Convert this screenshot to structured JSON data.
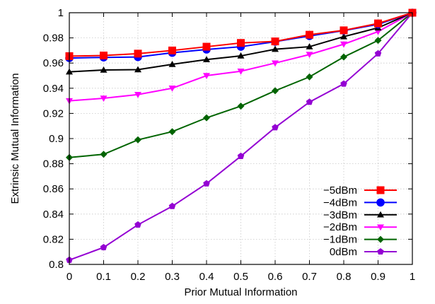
{
  "chart_data": {
    "type": "line",
    "title": "",
    "xlabel": "Prior Mutual Information",
    "ylabel": "Extrinsic Mutual Information",
    "xlim": [
      0,
      1
    ],
    "ylim": [
      0.8,
      1
    ],
    "x_ticks": [
      "0",
      "0.1",
      "0.2",
      "0.3",
      "0.4",
      "0.5",
      "0.6",
      "0.7",
      "0.8",
      "0.9",
      "1"
    ],
    "y_ticks": [
      "0.8",
      "0.82",
      "0.84",
      "0.86",
      "0.88",
      "0.9",
      "0.92",
      "0.94",
      "0.96",
      "0.98",
      "1"
    ],
    "grid": true,
    "legend_position": "bottom-right",
    "x": [
      0,
      0.1,
      0.2,
      0.3,
      0.4,
      0.5,
      0.6,
      0.7,
      0.8,
      0.9,
      1
    ],
    "series": [
      {
        "name": "−5dBm",
        "color": "#ff0000",
        "marker": "square",
        "values": [
          0.9655,
          0.966,
          0.9675,
          0.97,
          0.973,
          0.976,
          0.9772,
          0.9825,
          0.986,
          0.9915,
          1.0
        ]
      },
      {
        "name": "−4dBm",
        "color": "#0000ff",
        "marker": "circle",
        "values": [
          0.964,
          0.9645,
          0.9648,
          0.9682,
          0.9708,
          0.973,
          0.977,
          0.9815,
          0.9858,
          0.9908,
          1.0
        ]
      },
      {
        "name": "−3dBm",
        "color": "#000000",
        "marker": "triangle-up",
        "values": [
          0.953,
          0.9545,
          0.9548,
          0.959,
          0.9628,
          0.9657,
          0.971,
          0.973,
          0.981,
          0.988,
          1.0
        ]
      },
      {
        "name": "−2dBm",
        "color": "#ff00ff",
        "marker": "triangle-down",
        "values": [
          0.93,
          0.932,
          0.935,
          0.94,
          0.95,
          0.9535,
          0.96,
          0.9668,
          0.975,
          0.985,
          1.0
        ]
      },
      {
        "name": "−1dBm",
        "color": "#006400",
        "marker": "diamond",
        "values": [
          0.885,
          0.8875,
          0.899,
          0.9055,
          0.9165,
          0.9258,
          0.938,
          0.949,
          0.9648,
          0.978,
          1.0
        ]
      },
      {
        "name": "0dBm",
        "color": "#9400d3",
        "marker": "pentagon",
        "values": [
          0.8035,
          0.8135,
          0.8315,
          0.8462,
          0.8642,
          0.886,
          0.9088,
          0.929,
          0.9435,
          0.9675,
          1.0
        ]
      }
    ]
  }
}
